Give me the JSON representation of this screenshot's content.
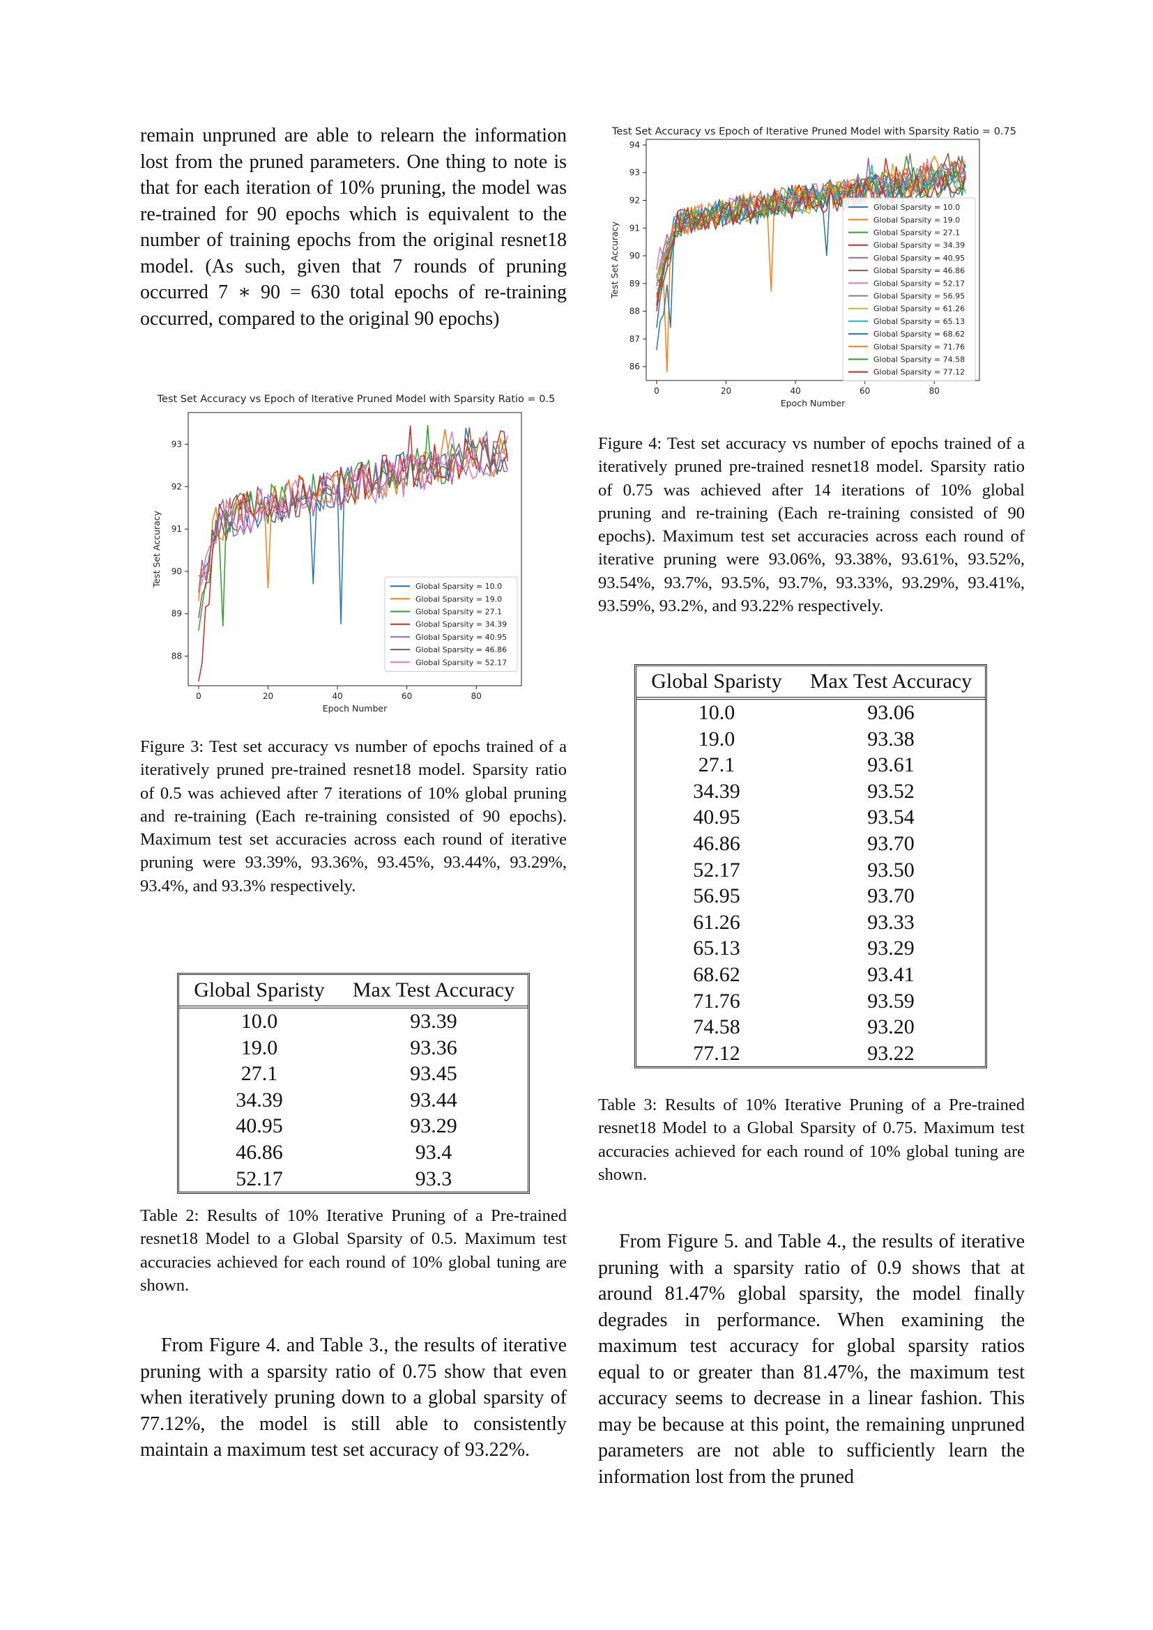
{
  "left_column": {
    "para_top": "remain unpruned are able to relearn the information lost from the pruned parameters. One thing to note is that for each iteration of 10% pruning, the model was re-trained for 90 epochs which is equivalent to the number of training epochs from the original resnet18 model. (As such, given that 7 rounds of pruning occurred 7 ∗ 90 = 630 total epochs of re-training occurred, compared to the original 90 epochs)",
    "figure3_caption": "Figure 3: Test set accuracy vs number of epochs trained of a iteratively pruned pre-trained resnet18 model. Sparsity ratio of 0.5 was achieved after 7 iterations of 10% global pruning and re-training (Each re-training consisted of 90 epochs). Maximum test set accuracies across each round of iterative pruning were 93.39%, 93.36%, 93.45%, 93.44%, 93.29%, 93.4%, and 93.3% respectively.",
    "table2": {
      "headers": [
        "Global Sparisty",
        "Max Test Accuracy"
      ],
      "rows": [
        [
          "10.0",
          "93.39"
        ],
        [
          "19.0",
          "93.36"
        ],
        [
          "27.1",
          "93.45"
        ],
        [
          "34.39",
          "93.44"
        ],
        [
          "40.95",
          "93.29"
        ],
        [
          "46.86",
          "93.4"
        ],
        [
          "52.17",
          "93.3"
        ]
      ]
    },
    "table2_caption": "Table 2: Results of 10% Iterative Pruning of a Pre-trained resnet18 Model to a Global Sparsity of 0.5. Maximum test accuracies achieved for each round of 10% global tuning are shown.",
    "para_bottom": "From Figure 4. and Table 3., the results of iterative pruning with a sparsity ratio of 0.75 show that even when iteratively pruning down to a global sparsity of 77.12%, the model is still able to consistently maintain a maximum test set accuracy of 93.22%."
  },
  "right_column": {
    "figure4_caption": "Figure 4: Test set accuracy vs number of epochs trained of a iteratively pruned pre-trained resnet18 model. Sparsity ratio of 0.75 was achieved after 14 iterations of 10% global pruning and re-training (Each re-training consisted of 90 epochs). Maximum test set accuracies across each round of iterative pruning were 93.06%, 93.38%, 93.61%, 93.52%, 93.54%, 93.7%, 93.5%, 93.7%, 93.33%, 93.29%, 93.41%, 93.59%, 93.2%, and 93.22% respectively.",
    "table3": {
      "headers": [
        "Global Sparisty",
        "Max Test Accuracy"
      ],
      "rows": [
        [
          "10.0",
          "93.06"
        ],
        [
          "19.0",
          "93.38"
        ],
        [
          "27.1",
          "93.61"
        ],
        [
          "34.39",
          "93.52"
        ],
        [
          "40.95",
          "93.54"
        ],
        [
          "46.86",
          "93.70"
        ],
        [
          "52.17",
          "93.50"
        ],
        [
          "56.95",
          "93.70"
        ],
        [
          "61.26",
          "93.33"
        ],
        [
          "65.13",
          "93.29"
        ],
        [
          "68.62",
          "93.41"
        ],
        [
          "71.76",
          "93.59"
        ],
        [
          "74.58",
          "93.20"
        ],
        [
          "77.12",
          "93.22"
        ]
      ]
    },
    "table3_caption": "Table 3: Results of 10% Iterative Pruning of a Pre-trained resnet18 Model to a Global Sparsity of 0.75. Maximum test accuracies achieved for each round of 10% global tuning are shown.",
    "para_bottom": "From Figure 5. and Table 4., the results of iterative pruning with a sparsity ratio of 0.9 shows that at around 81.47% global sparsity, the model finally degrades in performance. When examining the maximum test accuracy for global sparsity ratios equal to or greater than 81.47%, the maximum test accuracy seems to decrease in a linear fashion. This may be because at this point, the remaining unpruned parameters are not able to sufficiently learn the information lost from the pruned"
  },
  "colors": [
    "#1f77b4",
    "#ff7f0e",
    "#2ca02c",
    "#d62728",
    "#9467bd",
    "#8c564b",
    "#e377c2",
    "#7f7f7f",
    "#bcbd22",
    "#17becf",
    "#1f77b4",
    "#ff7f0e",
    "#2ca02c",
    "#d62728"
  ],
  "chart_data": [
    {
      "type": "line",
      "title": "Test Set Accuracy vs Epoch of Iterative Pruned Model with Sparsity Ratio = 0.5",
      "xlabel": "Epoch Number",
      "ylabel": "Test Set Accuracy",
      "xlim": [
        -3,
        93
      ],
      "ylim": [
        87.3,
        93.75
      ],
      "xticks": [
        0,
        20,
        40,
        60,
        80
      ],
      "yticks": [
        88,
        89,
        90,
        91,
        92,
        93
      ],
      "legend_position": "lower-right",
      "grid": false,
      "series": [
        {
          "name": "Global Sparsity = 10.0",
          "max": 93.39,
          "start": 89.9,
          "dips": [
            [
              41,
              88.75
            ],
            [
              33,
              89.7
            ]
          ]
        },
        {
          "name": "Global Sparsity = 19.0",
          "max": 93.36,
          "start": 89.3,
          "dips": [
            [
              20,
              89.6
            ]
          ]
        },
        {
          "name": "Global Sparsity = 27.1",
          "max": 93.45,
          "start": 88.6,
          "dips": [
            [
              7,
              88.7
            ]
          ]
        },
        {
          "name": "Global Sparsity = 34.39",
          "max": 93.44,
          "start": 87.4,
          "dips": []
        },
        {
          "name": "Global Sparsity = 40.95",
          "max": 93.29,
          "start": 89.5,
          "dips": []
        },
        {
          "name": "Global Sparsity = 46.86",
          "max": 93.4,
          "start": 88.9,
          "dips": []
        },
        {
          "name": "Global Sparsity = 52.17",
          "max": 93.3,
          "start": 89.6,
          "dips": []
        }
      ]
    },
    {
      "type": "line",
      "title": "Test Set Accuracy vs Epoch of Iterative Pruned Model with Sparsity Ratio = 0.75",
      "xlabel": "Epoch Number",
      "ylabel": "Test Set Accuracy",
      "xlim": [
        -3,
        93
      ],
      "ylim": [
        85.5,
        94.2
      ],
      "xticks": [
        0,
        20,
        40,
        60,
        80
      ],
      "yticks": [
        86,
        87,
        88,
        89,
        90,
        91,
        92,
        93,
        94
      ],
      "legend_position": "lower-right",
      "grid": false,
      "series": [
        {
          "name": "Global Sparsity = 10.0",
          "max": 93.06,
          "start": 87.4,
          "dips": [
            [
              49,
              90
            ]
          ]
        },
        {
          "name": "Global Sparsity = 19.0",
          "max": 93.38,
          "start": 88.5,
          "dips": [
            [
              3,
              85.8
            ],
            [
              33,
              88.7
            ]
          ]
        },
        {
          "name": "Global Sparsity = 27.1",
          "max": 93.61,
          "start": 89.0,
          "dips": []
        },
        {
          "name": "Global Sparsity = 34.39",
          "max": 93.52,
          "start": 88.2,
          "dips": []
        },
        {
          "name": "Global Sparsity = 40.95",
          "max": 93.54,
          "start": 89.2,
          "dips": []
        },
        {
          "name": "Global Sparsity = 46.86",
          "max": 93.7,
          "start": 88.6,
          "dips": []
        },
        {
          "name": "Global Sparsity = 52.17",
          "max": 93.5,
          "start": 89.5,
          "dips": []
        },
        {
          "name": "Global Sparsity = 56.95",
          "max": 93.7,
          "start": 88.9,
          "dips": []
        },
        {
          "name": "Global Sparsity = 61.26",
          "max": 93.33,
          "start": 89.1,
          "dips": []
        },
        {
          "name": "Global Sparsity = 65.13",
          "max": 93.29,
          "start": 88.8,
          "dips": []
        },
        {
          "name": "Global Sparsity = 68.62",
          "max": 93.41,
          "start": 86.6,
          "dips": [
            [
              4,
              87.4
            ]
          ]
        },
        {
          "name": "Global Sparsity = 71.76",
          "max": 93.59,
          "start": 89.3,
          "dips": []
        },
        {
          "name": "Global Sparsity = 74.58",
          "max": 93.2,
          "start": 88.3,
          "dips": []
        },
        {
          "name": "Global Sparsity = 77.12",
          "max": 93.22,
          "start": 88.0,
          "dips": []
        }
      ]
    }
  ]
}
